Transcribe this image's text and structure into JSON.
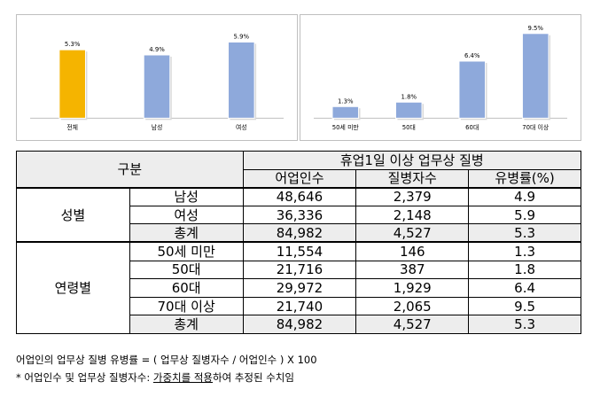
{
  "chart_data": [
    {
      "type": "bar",
      "categories": [
        "전체",
        "남성",
        "여성"
      ],
      "values": [
        5.3,
        4.9,
        5.9
      ],
      "value_labels": [
        "5.3%",
        "4.9%",
        "5.9%"
      ],
      "colors": [
        "#f5b400",
        "#8ea9db",
        "#8ea9db"
      ],
      "ylim": [
        0,
        6.5
      ]
    },
    {
      "type": "bar",
      "categories": [
        "50세 미만",
        "50대",
        "60대",
        "70대 이상"
      ],
      "values": [
        1.3,
        1.8,
        6.4,
        9.5
      ],
      "value_labels": [
        "1.3%",
        "1.8%",
        "6.4%",
        "9.5%"
      ],
      "colors": [
        "#8ea9db",
        "#8ea9db",
        "#8ea9db",
        "#8ea9db"
      ],
      "ylim": [
        0,
        10
      ]
    }
  ],
  "table": {
    "header_group": "구분",
    "header_main": "휴업1일 이상 업무상 질병",
    "col_headers": [
      "어업인수",
      "질병자수",
      "유병률(%)"
    ],
    "sections": [
      {
        "label": "성별",
        "rows": [
          {
            "label": "남성",
            "values": [
              "48,646",
              "2,379",
              "4.9"
            ],
            "shaded": false
          },
          {
            "label": "여성",
            "values": [
              "36,336",
              "2,148",
              "5.9"
            ],
            "shaded": false
          },
          {
            "label": "총계",
            "values": [
              "84,982",
              "4,527",
              "5.3"
            ],
            "shaded": true
          }
        ]
      },
      {
        "label": "연령별",
        "rows": [
          {
            "label": "50세 미만",
            "values": [
              "11,554",
              "146",
              "1.3"
            ],
            "shaded": false
          },
          {
            "label": "50대",
            "values": [
              "21,716",
              "387",
              "1.8"
            ],
            "shaded": false
          },
          {
            "label": "60대",
            "values": [
              "29,972",
              "1,929",
              "6.4"
            ],
            "shaded": false
          },
          {
            "label": "70대 이상",
            "values": [
              "21,740",
              "2,065",
              "9.5"
            ],
            "shaded": false
          },
          {
            "label": "총계",
            "values": [
              "84,982",
              "4,527",
              "5.3"
            ],
            "shaded": true
          }
        ]
      }
    ]
  },
  "notes": {
    "formula": "어업인의 업무상 질병 유병률 = ( 업무상 질병자수 / 어업인수 ) X 100",
    "footnote_prefix": "* 어업인수 및 업무상 질병자수: ",
    "footnote_underlined": "가중치를 적용",
    "footnote_suffix": "하여 추정된 수치임"
  }
}
